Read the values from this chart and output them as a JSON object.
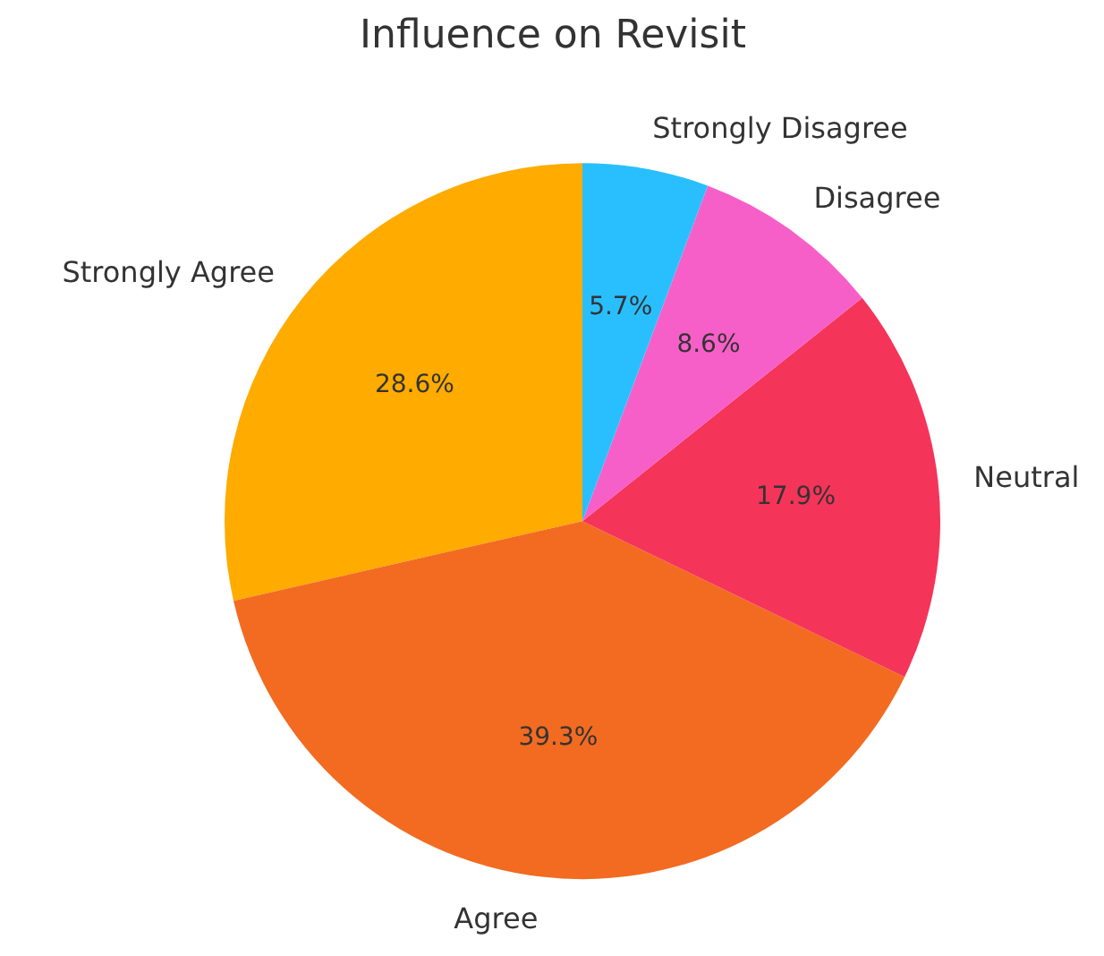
{
  "chart_data": {
    "type": "pie",
    "title": "Influence on Revisit",
    "categories": [
      "Strongly Agree",
      "Agree",
      "Neutral",
      "Disagree",
      "Strongly Disagree"
    ],
    "values": [
      28.6,
      39.3,
      17.9,
      8.6,
      5.7
    ],
    "colors": [
      "#ffab00",
      "#f26b21",
      "#f5345a",
      "#f75fc8",
      "#29bfff"
    ],
    "value_labels": [
      "28.6%",
      "39.3%",
      "17.9%",
      "8.6%",
      "5.7%"
    ]
  }
}
